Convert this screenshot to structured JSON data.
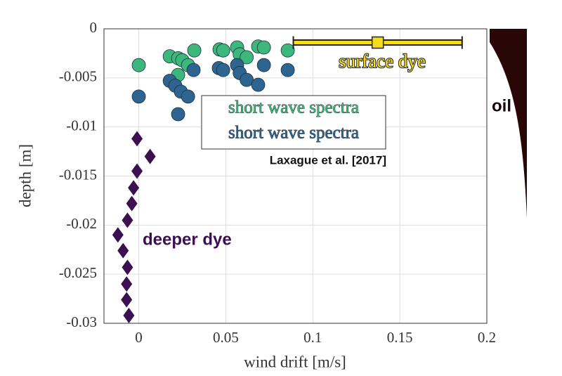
{
  "chart_data": {
    "type": "scatter",
    "xlabel": "wind drift [m/s]",
    "ylabel": "depth [m]",
    "xlim": [
      -0.02,
      0.2
    ],
    "ylim": [
      -0.03,
      0
    ],
    "xticks": [
      0,
      0.05,
      0.1,
      0.15,
      0.2
    ],
    "yticks": [
      0,
      -0.005,
      -0.01,
      -0.015,
      -0.02,
      -0.025,
      -0.03
    ],
    "grid": true,
    "series": [
      {
        "name": "deeper dye",
        "color": "#3b0f50",
        "marker": "diamond",
        "x": [
          -0.001,
          0.0065,
          -0.001,
          -0.003,
          -0.004,
          -0.0065,
          -0.012,
          -0.009,
          -0.0065,
          -0.007,
          -0.007,
          -0.0057
        ],
        "values": [
          -0.0112,
          -0.013,
          -0.0145,
          -0.0162,
          -0.0178,
          -0.0195,
          -0.021,
          -0.0226,
          -0.0243,
          -0.026,
          -0.0276,
          -0.0292
        ]
      },
      {
        "name": "short wave spectra",
        "color": "#3db87c",
        "marker": "circle",
        "x": [
          0,
          0.0178,
          0.0226,
          0.025,
          0.0283,
          0.0319,
          0.0464,
          0.0485,
          0.0565,
          0.058,
          0.062,
          0.0686,
          0.0719,
          0.0856,
          0.0226
        ],
        "values": [
          -0.0037,
          -0.0028,
          -0.003,
          -0.0032,
          -0.0037,
          -0.0022,
          -0.0021,
          -0.0022,
          -0.0019,
          -0.0026,
          -0.0029,
          -0.0018,
          -0.0019,
          -0.0022,
          -0.0047
        ]
      },
      {
        "name": "short wave spectra",
        "color": "#2d6590",
        "marker": "circle",
        "x": [
          0,
          0.0178,
          0.021,
          0.0242,
          0.0283,
          0.0226,
          0.0315,
          0.046,
          0.0485,
          0.0565,
          0.058,
          0.062,
          0.0686,
          0.0719,
          0.0856
        ],
        "values": [
          -0.0069,
          -0.0053,
          -0.0058,
          -0.0064,
          -0.0069,
          -0.0087,
          -0.0042,
          -0.004,
          -0.0042,
          -0.0037,
          -0.0045,
          -0.0052,
          -0.0057,
          -0.0037,
          -0.0042
        ]
      },
      {
        "name": "surface dye",
        "color": "#f5dc1e",
        "marker": "square",
        "x": [
          0.1373
        ],
        "values": [
          -0.0014
        ],
        "x_errors": [
          0.0485
        ]
      }
    ],
    "annotations": [
      "Laxague et al. [2017]",
      "oil"
    ]
  }
}
